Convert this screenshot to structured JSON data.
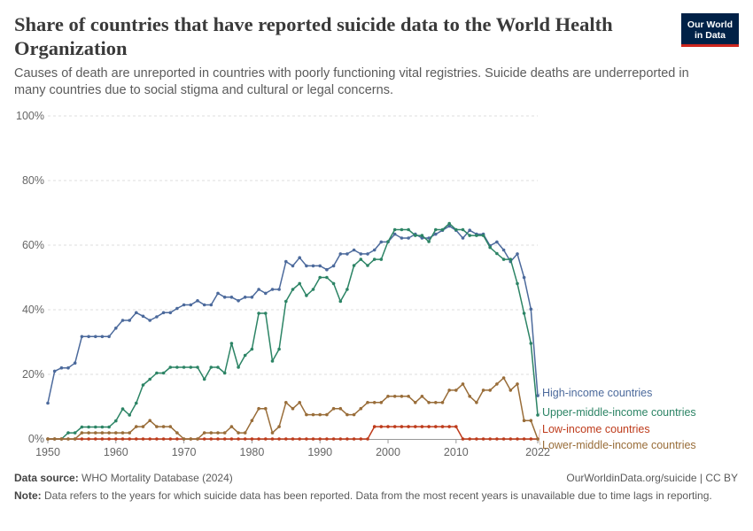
{
  "header": {
    "title": "Share of countries that have reported suicide data to the World Health Organization",
    "subtitle": "Causes of death are unreported in countries with poorly functioning vital registries. Suicide deaths are underreported in many countries due to social stigma and cultural or legal concerns.",
    "logo_line1": "Our World",
    "logo_line2": "in Data"
  },
  "footer": {
    "source_label": "Data source:",
    "source_text": "WHO Mortality Database (2024)",
    "url_text": "OurWorldinData.org/suicide | CC BY",
    "note_label": "Note:",
    "note_text": "Data refers to the years for which suicide data has been reported. Data from the most recent years is unavailable due to time lags in reporting."
  },
  "colors": {
    "high": "#4c6a9c",
    "upper_middle": "#2c8465",
    "low": "#be3b1b",
    "lower_middle": "#996d39",
    "grid": "#dddddd",
    "axis": "#666666",
    "logo_bg": "#002147",
    "logo_bar": "#ce261e"
  },
  "chart_data": {
    "type": "line",
    "x_start": 1950,
    "x_end": 2022,
    "ylim": [
      0,
      100
    ],
    "y_ticks": [
      "0%",
      "20%",
      "40%",
      "60%",
      "80%",
      "100%"
    ],
    "y_tick_values": [
      0,
      20,
      40,
      60,
      80,
      100
    ],
    "x_ticks": [
      "1950",
      "1960",
      "1970",
      "1980",
      "1990",
      "2000",
      "2010",
      "2022"
    ],
    "x_tick_values": [
      1950,
      1960,
      1970,
      1980,
      1990,
      2000,
      2010,
      2022
    ],
    "grid": "horizontal dashed",
    "legend_placement": "right end labels",
    "series": [
      {
        "name": "High-income countries",
        "color": "#4c6a9c",
        "values": [
          11.1,
          21.0,
          22.0,
          22.0,
          23.5,
          31.7,
          31.7,
          31.7,
          31.7,
          31.7,
          34.3,
          36.7,
          36.7,
          39.1,
          38.0,
          36.7,
          37.8,
          39.1,
          39.1,
          40.4,
          41.5,
          41.5,
          42.8,
          41.5,
          41.5,
          45.1,
          43.9,
          43.9,
          42.8,
          43.9,
          43.9,
          46.3,
          45.1,
          46.3,
          46.3,
          54.9,
          53.6,
          56.1,
          53.6,
          53.6,
          53.6,
          52.4,
          53.6,
          57.3,
          57.3,
          58.5,
          57.3,
          57.3,
          58.5,
          61.0,
          61.0,
          63.4,
          62.2,
          62.2,
          63.4,
          62.2,
          62.2,
          63.4,
          64.6,
          65.9,
          64.6,
          62.2,
          64.6,
          63.4,
          63.4,
          59.8,
          61.0,
          58.5,
          54.9,
          57.3,
          50.0,
          40.2,
          13.4
        ]
      },
      {
        "name": "Upper-middle-income countries",
        "color": "#2c8465",
        "values": [
          0,
          0,
          0,
          1.9,
          1.9,
          3.7,
          3.7,
          3.7,
          3.7,
          3.7,
          5.6,
          9.3,
          7.4,
          11.1,
          16.7,
          18.5,
          20.4,
          20.4,
          22.2,
          22.2,
          22.2,
          22.2,
          22.2,
          18.5,
          22.2,
          22.2,
          20.4,
          29.6,
          22.2,
          25.9,
          27.8,
          38.9,
          38.9,
          24.1,
          27.8,
          42.6,
          46.3,
          48.1,
          44.4,
          46.3,
          50.0,
          50.0,
          48.1,
          42.6,
          46.3,
          53.7,
          55.6,
          53.7,
          55.6,
          55.6,
          61.1,
          64.8,
          64.8,
          64.8,
          63.0,
          63.0,
          61.1,
          64.8,
          64.8,
          66.7,
          64.8,
          64.8,
          63.0,
          63.0,
          63.0,
          59.3,
          57.4,
          55.6,
          55.6,
          48.1,
          38.9,
          29.6,
          7.4
        ]
      },
      {
        "name": "Low-income countries",
        "color": "#be3b1b",
        "values": [
          0,
          0,
          0,
          0,
          0,
          0,
          0,
          0,
          0,
          0,
          0,
          0,
          0,
          0,
          0,
          0,
          0,
          0,
          0,
          0,
          0,
          0,
          0,
          0,
          0,
          0,
          0,
          0,
          0,
          0,
          0,
          0,
          0,
          0,
          0,
          0,
          0,
          0,
          0,
          0,
          0,
          0,
          0,
          0,
          0,
          0,
          0,
          0,
          3.8,
          3.8,
          3.8,
          3.8,
          3.8,
          3.8,
          3.8,
          3.8,
          3.8,
          3.8,
          3.8,
          3.8,
          3.8,
          0,
          0,
          0,
          0,
          0,
          0,
          0,
          0,
          0,
          0,
          0,
          0
        ]
      },
      {
        "name": "Lower-middle-income countries",
        "color": "#996d39",
        "values": [
          0,
          0,
          0,
          0,
          0,
          1.9,
          1.9,
          1.9,
          1.9,
          1.9,
          1.9,
          1.9,
          1.9,
          3.8,
          3.8,
          5.7,
          3.8,
          3.8,
          3.8,
          1.9,
          0,
          0,
          0,
          1.9,
          1.9,
          1.9,
          1.9,
          3.8,
          1.9,
          1.9,
          5.7,
          9.4,
          9.4,
          1.9,
          3.8,
          11.3,
          9.4,
          11.3,
          7.5,
          7.5,
          7.5,
          7.5,
          9.4,
          9.4,
          7.5,
          7.5,
          9.4,
          11.3,
          11.3,
          11.3,
          13.2,
          13.2,
          13.2,
          13.2,
          11.3,
          13.2,
          11.3,
          11.3,
          11.3,
          15.1,
          15.1,
          17.0,
          13.2,
          11.3,
          15.1,
          15.1,
          17.0,
          18.9,
          15.1,
          17.0,
          5.7,
          5.7,
          0
        ]
      }
    ]
  }
}
